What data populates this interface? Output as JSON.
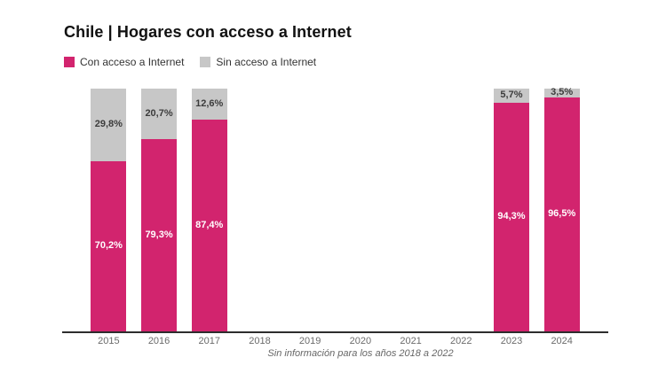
{
  "page": {
    "title": "Chile | Hogares con acceso a Internet",
    "note": "Sin información para los años 2018 a 2022"
  },
  "legend": {
    "items": [
      {
        "label": "Con acceso a Internet",
        "color": "#D2246E"
      },
      {
        "label": "Sin acceso a Internet",
        "color": "#C7C7C7"
      }
    ]
  },
  "chart_data": {
    "type": "bar",
    "stacked": true,
    "unit": "%",
    "title": "Chile | Hogares con acceso a Internet",
    "categories": [
      "2015",
      "2016",
      "2017",
      "2018",
      "2019",
      "2020",
      "2021",
      "2022",
      "2023",
      "2024"
    ],
    "series": [
      {
        "name": "Con acceso a Internet",
        "color": "#D2246E",
        "values": [
          70.2,
          79.3,
          87.4,
          null,
          null,
          null,
          null,
          null,
          94.3,
          96.5
        ],
        "labels": [
          "70,2%",
          "79,3%",
          "87,4%",
          null,
          null,
          null,
          null,
          null,
          "94,3%",
          "96,5%"
        ],
        "label_color": "#ffffff"
      },
      {
        "name": "Sin acceso a Internet",
        "color": "#C7C7C7",
        "values": [
          29.8,
          20.7,
          12.6,
          null,
          null,
          null,
          null,
          null,
          5.7,
          3.5
        ],
        "labels": [
          "29,8%",
          "20,7%",
          "12,6%",
          null,
          null,
          null,
          null,
          null,
          "5,7%",
          "3,5%"
        ],
        "label_color": "#3c3c3c"
      }
    ],
    "ylim": [
      0,
      100
    ],
    "grid": false,
    "legend_position": "top-left",
    "xlabel": "",
    "ylabel": "",
    "annotation": "Sin información para los años 2018 a 2022"
  },
  "colors": {
    "axis": "#2d2d2d",
    "tick_text": "#6b6b6b",
    "note_text": "#666666"
  }
}
